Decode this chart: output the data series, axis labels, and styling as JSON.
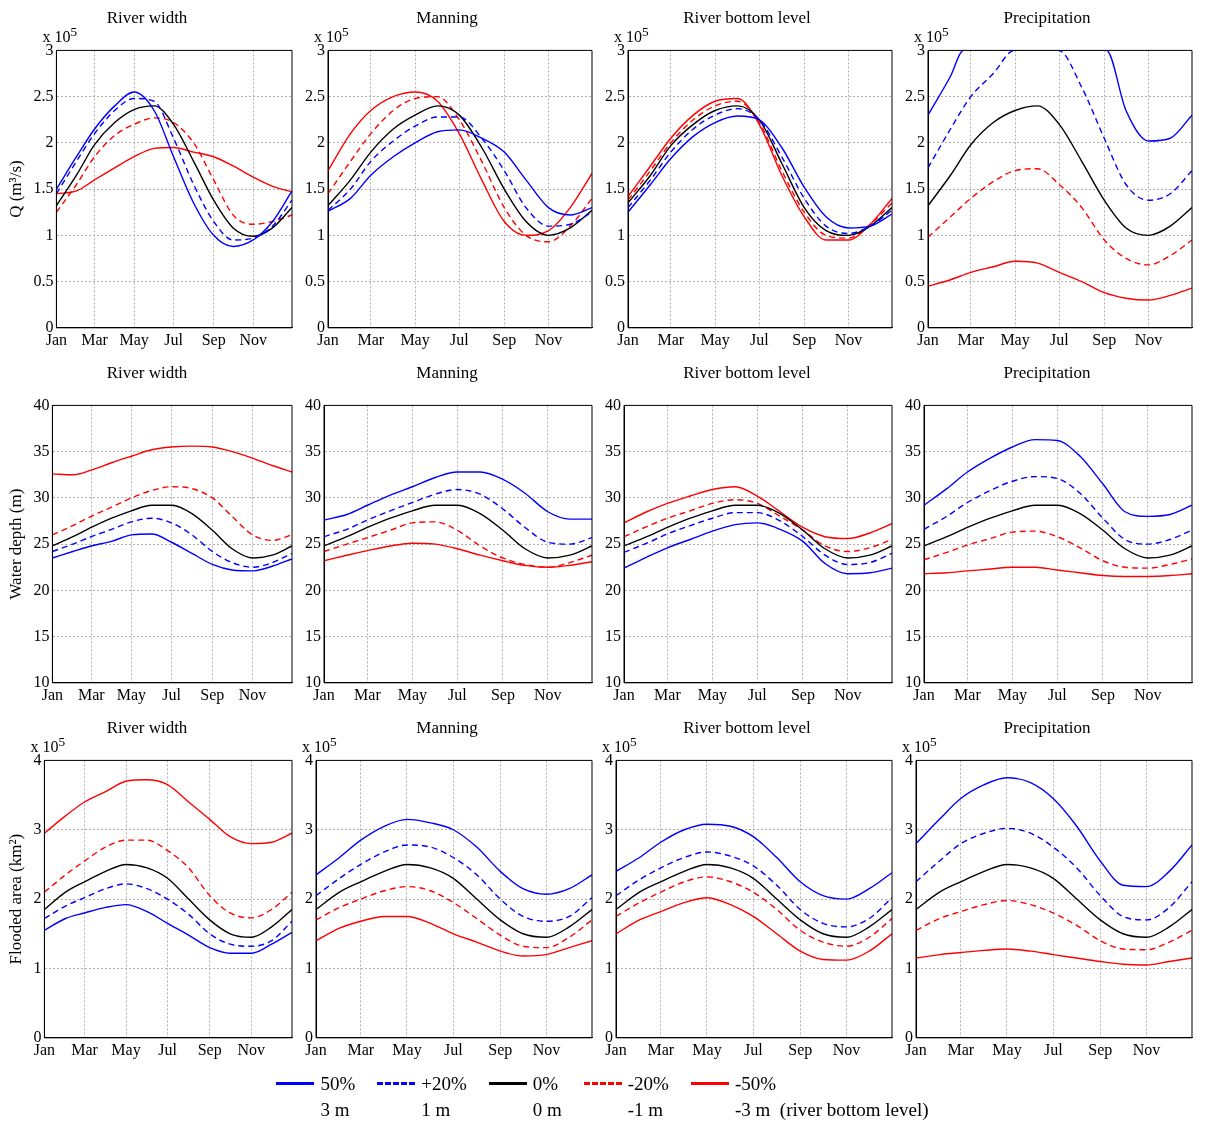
{
  "chart_data": [
    {
      "type": "line",
      "title": "River width",
      "ylabel": "Q (m³/s)",
      "annotations": [
        "x 10$^{5}$"
      ],
      "legend": "bottom",
      "grid": true,
      "x": [
        "--01-01",
        "--02-01",
        "--03-01",
        "--04-01",
        "--05-01",
        "--06-01",
        "--07-01",
        "--08-01",
        "--09-01",
        "--10-01",
        "--11-01",
        "--12-01",
        "--12-31"
      ],
      "xlim": [
        "--01-01",
        "--12-31"
      ],
      "xticks": [
        {
          "value": "--01-01",
          "label": "Jan"
        },
        {
          "value": "--03-01",
          "label": "Mar"
        },
        {
          "value": "--05-01",
          "label": "May"
        },
        {
          "value": "--07-01",
          "label": "Jul"
        },
        {
          "value": "--09-01",
          "label": "Sep"
        },
        {
          "value": "--11-01",
          "label": "Nov"
        }
      ],
      "ylim": [
        0,
        3
      ],
      "yticks": [
        0,
        0.5,
        1,
        1.5,
        2,
        2.5,
        3
      ],
      "series": [
        {
          "name": "50%\n3 m",
          "color": "#0000ff",
          "line_style": "solid",
          "values": [
            1.5,
            1.85,
            2.15,
            2.4,
            2.55,
            2.35,
            1.85,
            1.35,
            1.0,
            0.88,
            0.95,
            1.15,
            1.48
          ]
        },
        {
          "name": "+20%\n1 m",
          "color": "#0000ff",
          "line_style": "dashed",
          "values": [
            1.45,
            1.8,
            2.1,
            2.35,
            2.48,
            2.45,
            2.05,
            1.55,
            1.15,
            0.95,
            0.97,
            1.1,
            1.38
          ]
        },
        {
          "name": "0%\n0 m",
          "color": "#000000",
          "line_style": "solid",
          "values": [
            1.32,
            1.65,
            1.98,
            2.22,
            2.36,
            2.4,
            2.2,
            1.8,
            1.38,
            1.08,
            0.99,
            1.08,
            1.3
          ]
        },
        {
          "name": "-20%\n-1 m",
          "color": "#ff0000",
          "line_style": "dashed",
          "values": [
            1.25,
            1.55,
            1.85,
            2.08,
            2.2,
            2.27,
            2.22,
            2.0,
            1.6,
            1.22,
            1.12,
            1.15,
            1.22
          ]
        },
        {
          "name": "-50%\n-3 m  (river bottom level)",
          "color": "#ff0000",
          "line_style": "solid",
          "values": [
            1.45,
            1.48,
            1.6,
            1.73,
            1.85,
            1.94,
            1.95,
            1.9,
            1.85,
            1.75,
            1.63,
            1.53,
            1.47
          ]
        }
      ]
    },
    {
      "type": "line",
      "title": "Manning",
      "annotations": [
        "x 10$^{5}$"
      ],
      "grid": true,
      "x": [
        "--01-01",
        "--02-01",
        "--03-01",
        "--04-01",
        "--05-01",
        "--06-01",
        "--07-01",
        "--08-01",
        "--09-01",
        "--10-01",
        "--11-01",
        "--12-01",
        "--12-31"
      ],
      "xlim": [
        "--01-01",
        "--12-31"
      ],
      "xticks": [
        {
          "value": "--01-01",
          "label": "Jan"
        },
        {
          "value": "--03-01",
          "label": "Mar"
        },
        {
          "value": "--05-01",
          "label": "May"
        },
        {
          "value": "--07-01",
          "label": "Jul"
        },
        {
          "value": "--09-01",
          "label": "Sep"
        },
        {
          "value": "--11-01",
          "label": "Nov"
        }
      ],
      "ylim": [
        0,
        3
      ],
      "yticks": [
        0,
        0.5,
        1,
        1.5,
        2,
        2.5,
        3
      ],
      "series": [
        {
          "color": "#0000ff",
          "line_style": "solid",
          "values": [
            1.26,
            1.4,
            1.65,
            1.85,
            2.0,
            2.12,
            2.14,
            2.05,
            1.9,
            1.6,
            1.3,
            1.22,
            1.3
          ]
        },
        {
          "color": "#0000ff",
          "line_style": "dashed",
          "values": [
            1.27,
            1.5,
            1.8,
            2.02,
            2.18,
            2.28,
            2.28,
            2.05,
            1.7,
            1.3,
            1.1,
            1.12,
            1.25
          ]
        },
        {
          "color": "#000000",
          "line_style": "solid",
          "values": [
            1.32,
            1.6,
            1.9,
            2.15,
            2.3,
            2.4,
            2.3,
            1.95,
            1.5,
            1.15,
            1.0,
            1.08,
            1.27
          ]
        },
        {
          "color": "#ff0000",
          "line_style": "dashed",
          "values": [
            1.45,
            1.8,
            2.1,
            2.35,
            2.48,
            2.5,
            2.25,
            1.8,
            1.3,
            1.0,
            0.93,
            1.1,
            1.4
          ]
        },
        {
          "color": "#ff0000",
          "line_style": "solid",
          "values": [
            1.7,
            2.1,
            2.35,
            2.5,
            2.55,
            2.45,
            2.1,
            1.6,
            1.15,
            1.0,
            1.05,
            1.3,
            1.67
          ]
        }
      ]
    },
    {
      "type": "line",
      "title": "River bottom level",
      "annotations": [
        "x 10$^{5}$"
      ],
      "grid": true,
      "x": [
        "--01-01",
        "--02-01",
        "--03-01",
        "--04-01",
        "--05-01",
        "--06-01",
        "--07-01",
        "--08-01",
        "--09-01",
        "--10-01",
        "--11-01",
        "--12-01",
        "--12-31"
      ],
      "xlim": [
        "--01-01",
        "--12-31"
      ],
      "xticks": [
        {
          "value": "--01-01",
          "label": "Jan"
        },
        {
          "value": "--03-01",
          "label": "Mar"
        },
        {
          "value": "--05-01",
          "label": "May"
        },
        {
          "value": "--07-01",
          "label": "Jul"
        },
        {
          "value": "--09-01",
          "label": "Sep"
        },
        {
          "value": "--11-01",
          "label": "Nov"
        }
      ],
      "ylim": [
        0,
        3
      ],
      "yticks": [
        0,
        0.5,
        1,
        1.5,
        2,
        2.5,
        3
      ],
      "series": [
        {
          "color": "#0000ff",
          "line_style": "solid",
          "values": [
            1.25,
            1.55,
            1.83,
            2.07,
            2.22,
            2.29,
            2.25,
            1.95,
            1.52,
            1.2,
            1.08,
            1.1,
            1.23
          ]
        },
        {
          "color": "#0000ff",
          "line_style": "dashed",
          "values": [
            1.3,
            1.6,
            1.9,
            2.15,
            2.3,
            2.37,
            2.25,
            1.85,
            1.4,
            1.1,
            1.02,
            1.1,
            1.27
          ]
        },
        {
          "color": "#000000",
          "line_style": "solid",
          "values": [
            1.35,
            1.65,
            1.97,
            2.2,
            2.35,
            2.4,
            2.25,
            1.78,
            1.3,
            1.05,
            1.0,
            1.1,
            1.3
          ]
        },
        {
          "color": "#ff0000",
          "line_style": "dashed",
          "values": [
            1.38,
            1.7,
            2.0,
            2.25,
            2.4,
            2.45,
            2.22,
            1.7,
            1.25,
            1.0,
            0.97,
            1.12,
            1.35
          ]
        },
        {
          "color": "#ff0000",
          "line_style": "solid",
          "values": [
            1.42,
            1.75,
            2.05,
            2.3,
            2.45,
            2.48,
            2.2,
            1.65,
            1.2,
            0.95,
            0.95,
            1.12,
            1.4
          ]
        }
      ]
    },
    {
      "type": "line",
      "title": "Precipitation",
      "annotations": [
        "x 10$^{5}$"
      ],
      "grid": true,
      "x": [
        "--01-01",
        "--02-01",
        "--03-01",
        "--04-01",
        "--05-01",
        "--06-01",
        "--07-01",
        "--08-01",
        "--09-01",
        "--10-01",
        "--11-01",
        "--12-01",
        "--12-31"
      ],
      "xlim": [
        "--01-01",
        "--12-31"
      ],
      "xticks": [
        {
          "value": "--01-01",
          "label": "Jan"
        },
        {
          "value": "--03-01",
          "label": "Mar"
        },
        {
          "value": "--05-01",
          "label": "May"
        },
        {
          "value": "--07-01",
          "label": "Jul"
        },
        {
          "value": "--09-01",
          "label": "Sep"
        },
        {
          "value": "--11-01",
          "label": "Nov"
        }
      ],
      "ylim": [
        0,
        3
      ],
      "yticks": [
        0,
        0.5,
        1,
        1.5,
        2,
        2.5,
        3
      ],
      "series": [
        {
          "color": "#0000ff",
          "line_style": "solid",
          "x": [
            "--01-01",
            "--02-01",
            "--02-19",
            "--09-04",
            "--10-01",
            "--11-01",
            "--12-01",
            "--12-31"
          ],
          "values": [
            2.3,
            2.72,
            3.0,
            3.0,
            2.35,
            2.02,
            2.05,
            2.3
          ]
        },
        {
          "color": "#0000ff",
          "line_style": "dashed",
          "x": [
            "--01-01",
            "--02-01",
            "--03-01",
            "--04-01",
            "--04-30",
            "--06-30",
            "--08-01",
            "--09-01",
            "--10-01",
            "--11-01",
            "--12-01",
            "--12-31"
          ],
          "values": [
            1.73,
            2.15,
            2.5,
            2.75,
            3.0,
            3.0,
            2.6,
            2.05,
            1.55,
            1.38,
            1.45,
            1.7
          ]
        },
        {
          "color": "#000000",
          "line_style": "solid",
          "values": [
            1.32,
            1.65,
            1.98,
            2.22,
            2.35,
            2.4,
            2.2,
            1.8,
            1.38,
            1.08,
            1.0,
            1.1,
            1.3
          ]
        },
        {
          "color": "#ff0000",
          "line_style": "dashed",
          "values": [
            0.98,
            1.2,
            1.4,
            1.58,
            1.7,
            1.72,
            1.55,
            1.3,
            0.95,
            0.75,
            0.68,
            0.78,
            0.95
          ]
        },
        {
          "color": "#ff0000",
          "line_style": "solid",
          "values": [
            0.45,
            0.52,
            0.6,
            0.66,
            0.72,
            0.7,
            0.6,
            0.5,
            0.38,
            0.32,
            0.3,
            0.35,
            0.43
          ]
        }
      ]
    },
    {
      "type": "line",
      "title": "River width",
      "ylabel": "Water depth (m)",
      "grid": true,
      "x": [
        "--01-01",
        "--02-01",
        "--03-01",
        "--04-01",
        "--05-01",
        "--06-01",
        "--07-01",
        "--08-01",
        "--09-01",
        "--10-01",
        "--11-01",
        "--12-01",
        "--12-31"
      ],
      "xlim": [
        "--01-01",
        "--12-31"
      ],
      "xticks": [
        {
          "value": "--01-01",
          "label": "Jan"
        },
        {
          "value": "--03-01",
          "label": "Mar"
        },
        {
          "value": "--05-01",
          "label": "May"
        },
        {
          "value": "--07-01",
          "label": "Jul"
        },
        {
          "value": "--09-01",
          "label": "Sep"
        },
        {
          "value": "--11-01",
          "label": "Nov"
        }
      ],
      "ylim": [
        10,
        40
      ],
      "yticks": [
        10,
        15,
        20,
        25,
        30,
        35,
        40
      ],
      "series": [
        {
          "color": "#0000ff",
          "line_style": "solid",
          "values": [
            23.5,
            24.2,
            24.8,
            25.3,
            26,
            26.1,
            25.2,
            24,
            22.8,
            22.2,
            22.1,
            22.6,
            23.4
          ]
        },
        {
          "color": "#0000ff",
          "line_style": "dashed",
          "values": [
            24.2,
            25,
            25.8,
            26.6,
            27.4,
            27.8,
            27.3,
            26,
            24.2,
            23,
            22.5,
            23,
            24
          ]
        },
        {
          "color": "#000000",
          "line_style": "solid",
          "values": [
            24.8,
            25.8,
            26.8,
            27.8,
            28.6,
            29.2,
            29.2,
            28.3,
            26.5,
            24.5,
            23.5,
            23.8,
            24.8
          ]
        },
        {
          "color": "#ff0000",
          "line_style": "dashed",
          "values": [
            26,
            27,
            28,
            29,
            30,
            30.8,
            31.2,
            31,
            30,
            28,
            26,
            25.4,
            26
          ]
        },
        {
          "color": "#ff0000",
          "line_style": "solid",
          "values": [
            32.6,
            32.5,
            33,
            33.8,
            34.5,
            35.2,
            35.5,
            35.6,
            35.5,
            35,
            34.3,
            33.5,
            32.8
          ]
        }
      ]
    },
    {
      "type": "line",
      "title": "Manning",
      "grid": true,
      "x": [
        "--01-01",
        "--02-01",
        "--03-01",
        "--04-01",
        "--05-01",
        "--06-01",
        "--07-01",
        "--08-01",
        "--09-01",
        "--10-01",
        "--11-01",
        "--12-01",
        "--12-31"
      ],
      "xlim": [
        "--01-01",
        "--12-31"
      ],
      "xticks": [
        {
          "value": "--01-01",
          "label": "Jan"
        },
        {
          "value": "--03-01",
          "label": "Mar"
        },
        {
          "value": "--05-01",
          "label": "May"
        },
        {
          "value": "--07-01",
          "label": "Jul"
        },
        {
          "value": "--09-01",
          "label": "Sep"
        },
        {
          "value": "--11-01",
          "label": "Nov"
        }
      ],
      "ylim": [
        10,
        40
      ],
      "yticks": [
        10,
        15,
        20,
        25,
        30,
        35,
        40
      ],
      "series": [
        {
          "color": "#0000ff",
          "line_style": "solid",
          "values": [
            27.6,
            28.2,
            29.2,
            30.3,
            31.2,
            32.2,
            32.8,
            32.8,
            32,
            30.5,
            28.5,
            27.7,
            27.7
          ]
        },
        {
          "color": "#0000ff",
          "line_style": "dashed",
          "values": [
            25.8,
            26.6,
            27.6,
            28.6,
            29.5,
            30.4,
            30.9,
            30.4,
            28.8,
            26.8,
            25.2,
            25,
            25.7
          ]
        },
        {
          "color": "#000000",
          "line_style": "solid",
          "values": [
            24.8,
            25.8,
            26.8,
            27.8,
            28.6,
            29.2,
            29.2,
            28.3,
            26.5,
            24.5,
            23.5,
            23.8,
            24.8
          ]
        },
        {
          "color": "#ff0000",
          "line_style": "dashed",
          "values": [
            24.2,
            25,
            25.7,
            26.5,
            27.3,
            27.4,
            26.5,
            24.8,
            23.5,
            22.8,
            22.5,
            23,
            23.8
          ]
        },
        {
          "color": "#ff0000",
          "line_style": "solid",
          "values": [
            23.2,
            23.8,
            24.3,
            24.8,
            25.1,
            25,
            24.5,
            23.8,
            23.2,
            22.7,
            22.5,
            22.7,
            23.1
          ]
        }
      ]
    },
    {
      "type": "line",
      "title": "River bottom level",
      "grid": true,
      "x": [
        "--01-01",
        "--02-01",
        "--03-01",
        "--04-01",
        "--05-01",
        "--06-01",
        "--07-01",
        "--08-01",
        "--09-01",
        "--10-01",
        "--11-01",
        "--12-01",
        "--12-31"
      ],
      "xlim": [
        "--01-01",
        "--12-31"
      ],
      "xticks": [
        {
          "value": "--01-01",
          "label": "Jan"
        },
        {
          "value": "--03-01",
          "label": "Mar"
        },
        {
          "value": "--05-01",
          "label": "May"
        },
        {
          "value": "--07-01",
          "label": "Jul"
        },
        {
          "value": "--09-01",
          "label": "Sep"
        },
        {
          "value": "--11-01",
          "label": "Nov"
        }
      ],
      "ylim": [
        10,
        40
      ],
      "yticks": [
        10,
        15,
        20,
        25,
        30,
        35,
        40
      ],
      "series": [
        {
          "color": "#0000ff",
          "line_style": "solid",
          "values": [
            22.4,
            23.6,
            24.6,
            25.5,
            26.4,
            27.1,
            27.3,
            26.6,
            25.3,
            22.9,
            21.8,
            21.9,
            22.4
          ]
        },
        {
          "color": "#0000ff",
          "line_style": "dashed",
          "values": [
            24.1,
            25.1,
            26.1,
            27,
            27.8,
            28.4,
            28.4,
            27.5,
            25.8,
            23.8,
            22.8,
            23,
            24
          ]
        },
        {
          "color": "#000000",
          "line_style": "solid",
          "values": [
            24.8,
            25.8,
            26.8,
            27.8,
            28.6,
            29.2,
            29.2,
            28.3,
            26.5,
            24.5,
            23.5,
            23.8,
            24.8
          ]
        },
        {
          "color": "#ff0000",
          "line_style": "dashed",
          "values": [
            25.8,
            26.9,
            27.8,
            28.6,
            29.4,
            29.8,
            29.4,
            28,
            26.5,
            24.8,
            24.2,
            24.6,
            25.5
          ]
        },
        {
          "color": "#ff0000",
          "line_style": "solid",
          "values": [
            27.3,
            28.5,
            29.4,
            30.2,
            30.9,
            31.2,
            30.2,
            28.5,
            26.8,
            25.8,
            25.6,
            26.2,
            27.2
          ]
        }
      ]
    },
    {
      "type": "line",
      "title": "Precipitation",
      "grid": true,
      "x": [
        "--01-01",
        "--02-01",
        "--03-01",
        "--04-01",
        "--05-01",
        "--06-01",
        "--07-01",
        "--08-01",
        "--09-01",
        "--10-01",
        "--11-01",
        "--12-01",
        "--12-31"
      ],
      "xlim": [
        "--01-01",
        "--12-31"
      ],
      "xticks": [
        {
          "value": "--01-01",
          "label": "Jan"
        },
        {
          "value": "--03-01",
          "label": "Mar"
        },
        {
          "value": "--05-01",
          "label": "May"
        },
        {
          "value": "--07-01",
          "label": "Jul"
        },
        {
          "value": "--09-01",
          "label": "Sep"
        },
        {
          "value": "--11-01",
          "label": "Nov"
        }
      ],
      "ylim": [
        10,
        40
      ],
      "yticks": [
        10,
        15,
        20,
        25,
        30,
        35,
        40
      ],
      "series": [
        {
          "color": "#0000ff",
          "line_style": "solid",
          "values": [
            29.2,
            31,
            32.8,
            34.3,
            35.5,
            36.3,
            36.2,
            34.5,
            31.5,
            28.5,
            28,
            28.2,
            29.2
          ]
        },
        {
          "color": "#0000ff",
          "line_style": "dashed",
          "values": [
            26.6,
            28,
            29.5,
            30.8,
            31.8,
            32.3,
            32.1,
            30.5,
            27.8,
            25.5,
            25,
            25.5,
            26.5
          ]
        },
        {
          "color": "#000000",
          "line_style": "solid",
          "values": [
            24.8,
            25.8,
            26.8,
            27.8,
            28.6,
            29.2,
            29.2,
            28.3,
            26.5,
            24.5,
            23.5,
            23.8,
            24.8
          ]
        },
        {
          "color": "#ff0000",
          "line_style": "dashed",
          "values": [
            23.3,
            24.1,
            24.9,
            25.6,
            26.3,
            26.4,
            25.8,
            24.6,
            23.2,
            22.5,
            22.4,
            22.8,
            23.4
          ]
        },
        {
          "color": "#ff0000",
          "line_style": "solid",
          "values": [
            21.8,
            21.9,
            22.1,
            22.3,
            22.5,
            22.5,
            22.2,
            21.9,
            21.6,
            21.5,
            21.5,
            21.6,
            21.8
          ]
        }
      ]
    },
    {
      "type": "line",
      "title": "River width",
      "ylabel": "Flooded area (km²)",
      "annotations": [
        "x 10$^{5}$"
      ],
      "grid": true,
      "x": [
        "--01-01",
        "--02-01",
        "--03-01",
        "--04-01",
        "--05-01",
        "--06-01",
        "--07-01",
        "--08-01",
        "--09-01",
        "--10-01",
        "--11-01",
        "--12-01",
        "--12-31"
      ],
      "xlim": [
        "--01-01",
        "--12-31"
      ],
      "xticks": [
        {
          "value": "--01-01",
          "label": "Jan"
        },
        {
          "value": "--03-01",
          "label": "Mar"
        },
        {
          "value": "--05-01",
          "label": "May"
        },
        {
          "value": "--07-01",
          "label": "Jul"
        },
        {
          "value": "--09-01",
          "label": "Sep"
        },
        {
          "value": "--11-01",
          "label": "Nov"
        }
      ],
      "ylim": [
        0,
        4
      ],
      "yticks": [
        0,
        1,
        2,
        3,
        4
      ],
      "series": [
        {
          "color": "#0000ff",
          "line_style": "solid",
          "values": [
            1.55,
            1.72,
            1.8,
            1.88,
            1.92,
            1.82,
            1.65,
            1.48,
            1.3,
            1.22,
            1.22,
            1.35,
            1.52
          ]
        },
        {
          "color": "#0000ff",
          "line_style": "dashed",
          "values": [
            1.72,
            1.9,
            2.02,
            2.15,
            2.22,
            2.15,
            2.0,
            1.78,
            1.5,
            1.35,
            1.32,
            1.4,
            1.68
          ]
        },
        {
          "color": "#000000",
          "line_style": "solid",
          "values": [
            1.85,
            2.1,
            2.25,
            2.4,
            2.5,
            2.45,
            2.3,
            2.0,
            1.7,
            1.5,
            1.45,
            1.6,
            1.85
          ]
        },
        {
          "color": "#ff0000",
          "line_style": "dashed",
          "values": [
            2.1,
            2.35,
            2.55,
            2.75,
            2.85,
            2.85,
            2.7,
            2.45,
            2.05,
            1.8,
            1.73,
            1.85,
            2.1
          ]
        },
        {
          "color": "#ff0000",
          "line_style": "solid",
          "values": [
            2.95,
            3.2,
            3.4,
            3.55,
            3.7,
            3.72,
            3.65,
            3.4,
            3.15,
            2.9,
            2.8,
            2.82,
            2.95
          ]
        }
      ]
    },
    {
      "type": "line",
      "title": "Manning",
      "annotations": [
        "x 10$^{5}$"
      ],
      "grid": true,
      "x": [
        "--01-01",
        "--02-01",
        "--03-01",
        "--04-01",
        "--05-01",
        "--06-01",
        "--07-01",
        "--08-01",
        "--09-01",
        "--10-01",
        "--11-01",
        "--12-01",
        "--12-31"
      ],
      "xlim": [
        "--01-01",
        "--12-31"
      ],
      "xticks": [
        {
          "value": "--01-01",
          "label": "Jan"
        },
        {
          "value": "--03-01",
          "label": "Mar"
        },
        {
          "value": "--05-01",
          "label": "May"
        },
        {
          "value": "--07-01",
          "label": "Jul"
        },
        {
          "value": "--09-01",
          "label": "Sep"
        },
        {
          "value": "--11-01",
          "label": "Nov"
        }
      ],
      "ylim": [
        0,
        4
      ],
      "yticks": [
        0,
        1,
        2,
        3,
        4
      ],
      "series": [
        {
          "color": "#0000ff",
          "line_style": "solid",
          "values": [
            2.35,
            2.6,
            2.85,
            3.05,
            3.15,
            3.1,
            3.0,
            2.75,
            2.4,
            2.15,
            2.07,
            2.15,
            2.35
          ]
        },
        {
          "color": "#0000ff",
          "line_style": "dashed",
          "values": [
            2.05,
            2.3,
            2.5,
            2.68,
            2.78,
            2.75,
            2.6,
            2.35,
            2.0,
            1.75,
            1.68,
            1.75,
            2.02
          ]
        },
        {
          "color": "#000000",
          "line_style": "solid",
          "values": [
            1.85,
            2.1,
            2.25,
            2.4,
            2.5,
            2.45,
            2.3,
            2.0,
            1.7,
            1.5,
            1.45,
            1.6,
            1.85
          ]
        },
        {
          "color": "#ff0000",
          "line_style": "dashed",
          "values": [
            1.7,
            1.88,
            2.0,
            2.12,
            2.18,
            2.12,
            1.95,
            1.72,
            1.48,
            1.32,
            1.3,
            1.45,
            1.7
          ]
        },
        {
          "color": "#ff0000",
          "line_style": "solid",
          "values": [
            1.4,
            1.58,
            1.68,
            1.75,
            1.75,
            1.65,
            1.5,
            1.38,
            1.25,
            1.18,
            1.2,
            1.3,
            1.4
          ]
        }
      ]
    },
    {
      "type": "line",
      "title": "River bottom level",
      "annotations": [
        "x 10$^{5}$"
      ],
      "grid": true,
      "x": [
        "--01-01",
        "--02-01",
        "--03-01",
        "--04-01",
        "--05-01",
        "--06-01",
        "--07-01",
        "--08-01",
        "--09-01",
        "--10-01",
        "--11-01",
        "--12-01",
        "--12-31"
      ],
      "xlim": [
        "--01-01",
        "--12-31"
      ],
      "xticks": [
        {
          "value": "--01-01",
          "label": "Jan"
        },
        {
          "value": "--03-01",
          "label": "Mar"
        },
        {
          "value": "--05-01",
          "label": "May"
        },
        {
          "value": "--07-01",
          "label": "Jul"
        },
        {
          "value": "--09-01",
          "label": "Sep"
        },
        {
          "value": "--11-01",
          "label": "Nov"
        }
      ],
      "ylim": [
        0,
        4
      ],
      "yticks": [
        0,
        1,
        2,
        3,
        4
      ],
      "series": [
        {
          "color": "#0000ff",
          "line_style": "solid",
          "values": [
            2.4,
            2.6,
            2.82,
            3.0,
            3.08,
            3.05,
            2.9,
            2.6,
            2.25,
            2.05,
            2.0,
            2.15,
            2.38
          ]
        },
        {
          "color": "#0000ff",
          "line_style": "dashed",
          "values": [
            2.05,
            2.28,
            2.45,
            2.6,
            2.68,
            2.62,
            2.48,
            2.2,
            1.85,
            1.65,
            1.6,
            1.72,
            2.02
          ]
        },
        {
          "color": "#000000",
          "line_style": "solid",
          "values": [
            1.85,
            2.1,
            2.25,
            2.4,
            2.5,
            2.45,
            2.3,
            2.0,
            1.7,
            1.5,
            1.45,
            1.6,
            1.85
          ]
        },
        {
          "color": "#ff0000",
          "line_style": "dashed",
          "values": [
            1.75,
            1.95,
            2.1,
            2.25,
            2.32,
            2.25,
            2.1,
            1.85,
            1.55,
            1.38,
            1.32,
            1.45,
            1.72
          ]
        },
        {
          "color": "#ff0000",
          "line_style": "solid",
          "values": [
            1.5,
            1.7,
            1.82,
            1.95,
            2.02,
            1.92,
            1.75,
            1.5,
            1.25,
            1.13,
            1.12,
            1.25,
            1.5
          ]
        }
      ]
    },
    {
      "type": "line",
      "title": "Precipitation",
      "annotations": [
        "x 10$^{5}$"
      ],
      "grid": true,
      "x": [
        "--01-01",
        "--02-01",
        "--03-01",
        "--04-01",
        "--05-01",
        "--06-01",
        "--07-01",
        "--08-01",
        "--09-01",
        "--10-01",
        "--11-01",
        "--12-01",
        "--12-31"
      ],
      "xlim": [
        "--01-01",
        "--12-31"
      ],
      "xticks": [
        {
          "value": "--01-01",
          "label": "Jan"
        },
        {
          "value": "--03-01",
          "label": "Mar"
        },
        {
          "value": "--05-01",
          "label": "May"
        },
        {
          "value": "--07-01",
          "label": "Jul"
        },
        {
          "value": "--09-01",
          "label": "Sep"
        },
        {
          "value": "--11-01",
          "label": "Nov"
        }
      ],
      "ylim": [
        0,
        4
      ],
      "yticks": [
        0,
        1,
        2,
        3,
        4
      ],
      "series": [
        {
          "color": "#0000ff",
          "line_style": "solid",
          "values": [
            2.8,
            3.15,
            3.45,
            3.65,
            3.75,
            3.68,
            3.45,
            3.05,
            2.55,
            2.2,
            2.18,
            2.4,
            2.78
          ]
        },
        {
          "color": "#0000ff",
          "line_style": "dashed",
          "values": [
            2.25,
            2.55,
            2.8,
            2.95,
            3.02,
            2.95,
            2.75,
            2.45,
            2.05,
            1.75,
            1.7,
            1.88,
            2.25
          ]
        },
        {
          "color": "#000000",
          "line_style": "solid",
          "values": [
            1.85,
            2.1,
            2.25,
            2.4,
            2.5,
            2.45,
            2.3,
            2.0,
            1.7,
            1.5,
            1.45,
            1.6,
            1.85
          ]
        },
        {
          "color": "#ff0000",
          "line_style": "dashed",
          "values": [
            1.55,
            1.72,
            1.82,
            1.92,
            1.98,
            1.92,
            1.8,
            1.62,
            1.4,
            1.28,
            1.27,
            1.38,
            1.55
          ]
        },
        {
          "color": "#ff0000",
          "line_style": "solid",
          "values": [
            1.15,
            1.2,
            1.23,
            1.26,
            1.28,
            1.25,
            1.2,
            1.15,
            1.1,
            1.06,
            1.05,
            1.1,
            1.15
          ]
        }
      ]
    }
  ]
}
